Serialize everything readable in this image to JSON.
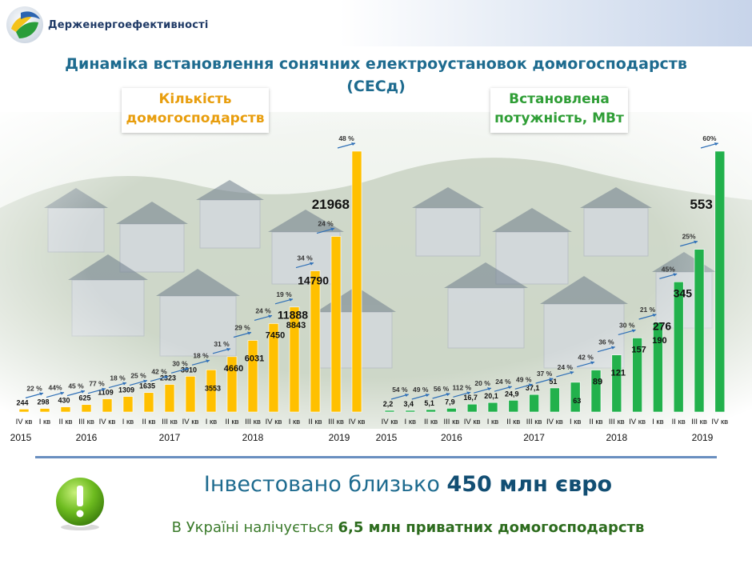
{
  "header": {
    "org_name": "Держенергоефективності",
    "title_line1": "Динаміка встановлення сонячних електроустановок домогосподарств",
    "title_line2": "(СЕСд)"
  },
  "chart_data": [
    {
      "type": "bar",
      "title": "Кількість\nдомогосподарств",
      "color": "#ffc000",
      "categories": [
        "IV кв",
        "I кв",
        "II кв",
        "III кв",
        "IV кв",
        "I кв",
        "II кв",
        "III кв",
        "IV кв",
        "I кв",
        "II кв",
        "III кв",
        "IV кв",
        "I кв",
        "II кв",
        "III кв",
        "IV кв"
      ],
      "value_labels": [
        "244",
        "298",
        "430",
        "625",
        "1109",
        "1309",
        "1635",
        "2323",
        "3010",
        "3553",
        "4660",
        "6031",
        "7450",
        "8843",
        "11888",
        "14790",
        "21968"
      ],
      "values": [
        244,
        298,
        430,
        625,
        1109,
        1309,
        1635,
        2323,
        3010,
        3553,
        4660,
        6031,
        7450,
        8843,
        11888,
        14790,
        21968
      ],
      "growth_labels": [
        "22 %",
        "44%",
        "45 %",
        "77 %",
        "18 %",
        "25 %",
        "42 %",
        "30 %",
        "18 %",
        "31 %",
        "29 %",
        "24 %",
        "19 %",
        "34 %",
        "24 %",
        "48 %"
      ],
      "years": [
        "2015",
        "2016",
        "2017",
        "2018",
        "2019"
      ],
      "year_anchor_index": [
        0,
        3,
        7,
        11,
        15
      ]
    },
    {
      "type": "bar",
      "title": "Встановлена\nпотужність, МВт",
      "color": "#22b14c",
      "categories": [
        "IV кв",
        "I кв",
        "II кв",
        "III кв",
        "IV кв",
        "I кв",
        "II кв",
        "III кв",
        "IV кв",
        "I кв",
        "II кв",
        "III кв",
        "IV кв",
        "I кв",
        "II кв",
        "III кв",
        "IV кв"
      ],
      "value_labels": [
        "2,2",
        "3,4",
        "5,1",
        "7,9",
        "16,7",
        "20,1",
        "24,9",
        "37,1",
        "51",
        "63",
        "89",
        "121",
        "157",
        "190",
        "276",
        "345",
        "553"
      ],
      "values": [
        2.2,
        3.4,
        5.1,
        7.9,
        16.7,
        20.1,
        24.9,
        37.1,
        51,
        63,
        89,
        121,
        157,
        190,
        276,
        345,
        553
      ],
      "growth_labels": [
        "54 %",
        "49 %",
        "56 %",
        "112 %",
        "20 %",
        "24 %",
        "49 %",
        "37 %",
        "24 %",
        "42 %",
        "36 %",
        "30 %",
        "21 %",
        "45%",
        "25%",
        "60%"
      ],
      "years": [
        "2015",
        "2016",
        "2017",
        "2018",
        "2019"
      ],
      "year_anchor_index": [
        0,
        3,
        7,
        11,
        15
      ]
    }
  ],
  "footer": {
    "invest_prefix": "Інвестовано близько ",
    "invest_value": "450 млн євро",
    "households_prefix": "В Україні налічується ",
    "households_value": "6,5 млн приватних домогосподарств"
  },
  "icons": {
    "logo": "ukraine-map-logo-icon",
    "warning": "exclamation-circle-icon"
  }
}
